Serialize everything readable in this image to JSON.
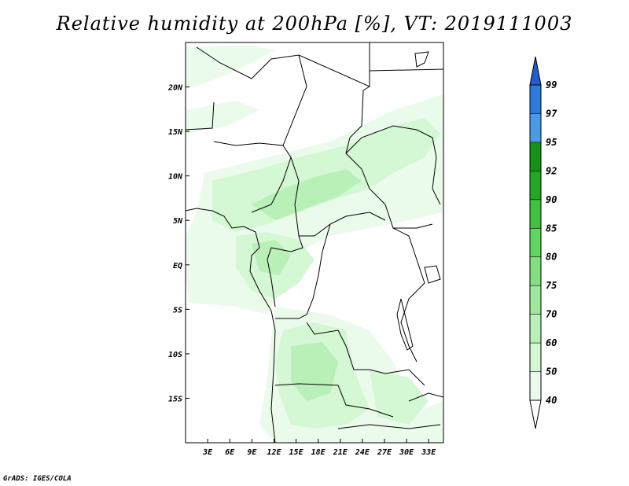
{
  "title": "Relative humidity at 200hPa [%], VT: 2019111003",
  "credit": "GrADS: IGES/COLA",
  "map": {
    "lon_range": [
      0,
      35
    ],
    "lat_range": [
      -20,
      25
    ],
    "lon_ticks": [
      {
        "value": 3,
        "label": "3E"
      },
      {
        "value": 6,
        "label": "6E"
      },
      {
        "value": 9,
        "label": "9E"
      },
      {
        "value": 12,
        "label": "12E"
      },
      {
        "value": 15,
        "label": "15E"
      },
      {
        "value": 18,
        "label": "18E"
      },
      {
        "value": 21,
        "label": "21E"
      },
      {
        "value": 24,
        "label": "24E"
      },
      {
        "value": 27,
        "label": "27E"
      },
      {
        "value": 30,
        "label": "30E"
      },
      {
        "value": 33,
        "label": "33E"
      }
    ],
    "lat_ticks": [
      {
        "value": 20,
        "label": "20N"
      },
      {
        "value": 15,
        "label": "15N"
      },
      {
        "value": 10,
        "label": "10N"
      },
      {
        "value": 5,
        "label": "5N"
      },
      {
        "value": 0,
        "label": "EQ"
      },
      {
        "value": -5,
        "label": "5S"
      },
      {
        "value": -10,
        "label": "10S"
      },
      {
        "value": -15,
        "label": "15S"
      }
    ]
  },
  "colorbar": {
    "levels": [
      "40",
      "50",
      "60",
      "70",
      "75",
      "80",
      "85",
      "90",
      "92",
      "95",
      "97",
      "99"
    ],
    "colors": {
      "under": "#ffffff",
      "40-50": "#ebfbeb",
      "50-60": "#d4f7d4",
      "60-70": "#b8f0b8",
      "70-75": "#9ee89e",
      "75-80": "#82e082",
      "80-85": "#5fd65f",
      "85-90": "#3fc23f",
      "90-92": "#22a822",
      "92-95": "#169216",
      "95-97": "#4a9ae8",
      "97-99": "#2d7ae0",
      "over": "#1e5ed0"
    }
  },
  "humidity_colors": {
    "faint": "#ebfbeb",
    "light": "#d4f7d4",
    "mid": "#b8f0b8",
    "strong": "#9ee89e"
  }
}
